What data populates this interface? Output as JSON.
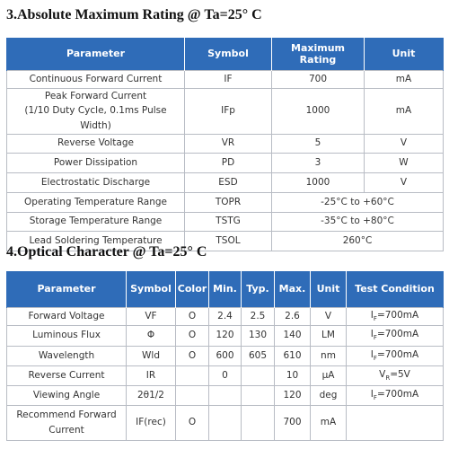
{
  "sections": [
    {
      "title": "3.Absolute Maximum Rating @ Ta=25° C",
      "headers": [
        "Parameter",
        "Symbol",
        "Maximum Rating",
        "Unit"
      ],
      "rows": [
        [
          "Continuous Forward Current",
          "IF",
          700,
          "mA"
        ],
        [
          [
            "Peak Forward Current",
            "(1/10 Duty Cycle, 0.1ms Pulse Width)"
          ],
          "IFp",
          1000,
          "mA"
        ],
        [
          "Reverse Voltage",
          "VR",
          5,
          "V"
        ],
        [
          "Power Dissipation",
          "PD",
          3,
          "W"
        ],
        [
          "Electrostatic Discharge",
          "ESD",
          1000,
          "V"
        ],
        [
          "Operating Temperature Range",
          "TOPR",
          "-25°C to +60°C"
        ],
        [
          "Storage Temperature Range",
          "TSTG",
          "-35°C to +80°C"
        ],
        [
          "Lead Soldering Temperature",
          "TSOL",
          "260°C"
        ]
      ]
    },
    {
      "title": "4.Optical Character @ Ta=25° C",
      "headers": [
        "Parameter",
        "Symbol",
        "Color",
        "Min.",
        "Typ.",
        "Max.",
        "Unit",
        "Test Condition"
      ],
      "rows": [
        [
          "Forward Voltage",
          "VF",
          "O",
          2.4,
          2.5,
          2.6,
          "V",
          {
            "base": "I",
            "sub": "F",
            "rest": "=700mA"
          }
        ],
        [
          "Luminous Flux",
          "Φ",
          "O",
          120,
          130,
          140,
          "LM",
          {
            "base": "I",
            "sub": "F",
            "rest": "=700mA"
          }
        ],
        [
          "Wavelength",
          "Wld",
          "O",
          600,
          605,
          610,
          "nm",
          {
            "base": "I",
            "sub": "F",
            "rest": "=700mA"
          }
        ],
        [
          "Reverse Current",
          "IR",
          null,
          0,
          null,
          10,
          "μA",
          {
            "base": "V",
            "sub": "R",
            "rest": "=5V"
          }
        ],
        [
          "Viewing Angle",
          "2θ1/2",
          null,
          null,
          null,
          120,
          "deg",
          {
            "base": "I",
            "sub": "F",
            "rest": "=700mA"
          }
        ],
        [
          "Recommend Forward Current",
          "IF(rec)",
          "O",
          null,
          null,
          700,
          "mA",
          null
        ]
      ]
    }
  ]
}
